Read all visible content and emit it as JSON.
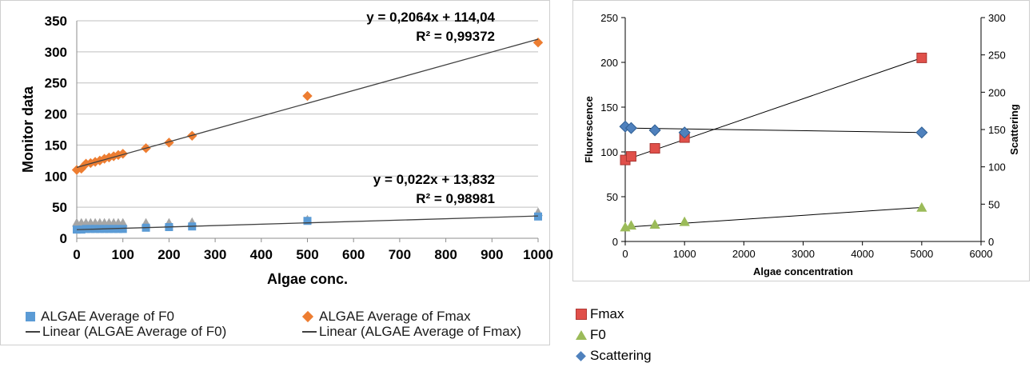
{
  "chart_data": [
    {
      "type": "scatter",
      "xlabel": "Algae conc.",
      "ylabel": "Monitor data",
      "xlim": [
        0,
        1000
      ],
      "ylim": [
        0,
        350
      ],
      "xticks": [
        "0",
        "100",
        "200",
        "300",
        "400",
        "500",
        "600",
        "700",
        "800",
        "900",
        "1000"
      ],
      "yticks": [
        "0",
        "50",
        "100",
        "150",
        "200",
        "250",
        "300",
        "350"
      ],
      "grid": "horizontal",
      "legend_position": "bottom",
      "series": [
        {
          "name": "ALGAE Average of F0",
          "color": "#5B9BD5",
          "marker": "square",
          "points": [
            [
              0,
              14
            ],
            [
              10,
              14
            ],
            [
              20,
              15
            ],
            [
              30,
              15
            ],
            [
              40,
              15
            ],
            [
              50,
              15
            ],
            [
              60,
              15
            ],
            [
              70,
              15
            ],
            [
              80,
              15
            ],
            [
              90,
              15
            ],
            [
              100,
              15
            ],
            [
              150,
              17
            ],
            [
              200,
              18
            ],
            [
              250,
              19
            ],
            [
              500,
              28
            ],
            [
              1000,
              35
            ]
          ]
        },
        {
          "name": "ALGAE Average of Fmax",
          "color": "#ED7D31",
          "marker": "diamond",
          "points": [
            [
              0,
              110
            ],
            [
              10,
              112
            ],
            [
              20,
              120
            ],
            [
              30,
              121
            ],
            [
              40,
              123
            ],
            [
              50,
              125
            ],
            [
              60,
              128
            ],
            [
              70,
              130
            ],
            [
              80,
              132
            ],
            [
              90,
              134
            ],
            [
              100,
              136
            ],
            [
              150,
              145
            ],
            [
              200,
              154
            ],
            [
              250,
              165
            ],
            [
              500,
              229
            ],
            [
              1000,
              315
            ]
          ]
        },
        {
          "name": "(unlabeled grey triangles)",
          "color": "#A6A6A6",
          "marker": "triangle",
          "points": [
            [
              0,
              25
            ],
            [
              10,
              25
            ],
            [
              20,
              25
            ],
            [
              30,
              25
            ],
            [
              40,
              25
            ],
            [
              50,
              25
            ],
            [
              60,
              25
            ],
            [
              70,
              25
            ],
            [
              80,
              25
            ],
            [
              90,
              25
            ],
            [
              100,
              25
            ],
            [
              150,
              25
            ],
            [
              200,
              25
            ],
            [
              250,
              26
            ],
            [
              500,
              30
            ],
            [
              1000,
              42
            ]
          ]
        }
      ],
      "trendlines": [
        {
          "name": "Linear (ALGAE Average of F0)",
          "slope": 0.022,
          "intercept": 13.832,
          "x_range": [
            0,
            1000
          ],
          "color": "#404040"
        },
        {
          "name": "Linear (ALGAE Average of Fmax)",
          "slope": 0.2064,
          "intercept": 114.04,
          "x_range": [
            0,
            1000
          ],
          "color": "#404040"
        }
      ],
      "annotations": [
        {
          "text": "y = 0,2064x + 114,04"
        },
        {
          "text": "R² = 0,99372"
        },
        {
          "text": "y = 0,022x + 13,832"
        },
        {
          "text": "R² = 0,98981"
        }
      ]
    },
    {
      "type": "scatter",
      "xlabel": "Algae concentration",
      "ylabel": "Fluorescence",
      "y2label": "Scattering",
      "xlim": [
        0,
        6000
      ],
      "ylim": [
        0,
        250
      ],
      "y2lim": [
        0,
        300
      ],
      "xticks": [
        "0",
        "1000",
        "2000",
        "3000",
        "4000",
        "5000",
        "6000"
      ],
      "yticks": [
        "0",
        "50",
        "100",
        "150",
        "200",
        "250"
      ],
      "y2ticks": [
        "0",
        "50",
        "100",
        "150",
        "200",
        "250",
        "300"
      ],
      "grid": "none",
      "legend_position": "bottom-left outside",
      "series": [
        {
          "name": "Fmax",
          "color": "#E0504A",
          "marker": "square",
          "axis": "left",
          "points": [
            [
              0,
              91
            ],
            [
              100,
              95
            ],
            [
              500,
              104
            ],
            [
              1000,
              116
            ],
            [
              5000,
              205
            ]
          ]
        },
        {
          "name": "F0",
          "color": "#9BBB59",
          "marker": "triangle",
          "axis": "left",
          "points": [
            [
              0,
              16
            ],
            [
              100,
              18
            ],
            [
              500,
              19
            ],
            [
              1000,
              22
            ],
            [
              5000,
              38
            ]
          ]
        },
        {
          "name": "Scattering",
          "color": "#4F81BD",
          "marker": "diamond",
          "axis": "right",
          "points": [
            [
              0,
              154
            ],
            [
              100,
              152
            ],
            [
              500,
              149
            ],
            [
              1000,
              146
            ],
            [
              5000,
              146
            ]
          ]
        }
      ],
      "trendlines": [
        {
          "series": "Fmax",
          "axis": "left",
          "from": [
            0,
            91
          ],
          "to": [
            5000,
            205
          ]
        },
        {
          "series": "F0",
          "axis": "left",
          "from": [
            0,
            16
          ],
          "to": [
            5000,
            38
          ]
        },
        {
          "series": "Scattering",
          "axis": "right",
          "from": [
            0,
            152
          ],
          "to": [
            5000,
            146
          ]
        }
      ]
    }
  ]
}
